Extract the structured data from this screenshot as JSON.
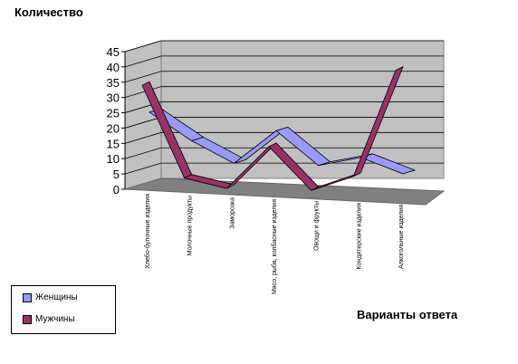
{
  "chart_data": {
    "type": "line",
    "style": "3d",
    "ylabel": "Количество",
    "xlabel": "Варианты ответа",
    "ylim": [
      0,
      45
    ],
    "yticks": [
      0,
      5,
      10,
      15,
      20,
      25,
      30,
      35,
      40,
      45
    ],
    "grid": true,
    "legend_position": "bottom-left",
    "categories": [
      "Хлебо-булочные изделия",
      "Молочные продукты",
      "Заморозка",
      "Мясо, рыба, колбасные изделия",
      "Овощи и фрукты",
      "Кондитерские изделия",
      "Алкогольные изделия"
    ],
    "series": [
      {
        "name": "Женщины",
        "color": "#9999ff",
        "values": [
          24,
          15,
          8,
          19,
          8,
          11,
          6
        ]
      },
      {
        "name": "Мужчины",
        "color": "#993366",
        "values": [
          34,
          4,
          1,
          15,
          1,
          6,
          41
        ]
      }
    ],
    "colors": {
      "wall": "#c0c0c0",
      "floor": "#808080",
      "plot_edge": "#808080"
    }
  }
}
